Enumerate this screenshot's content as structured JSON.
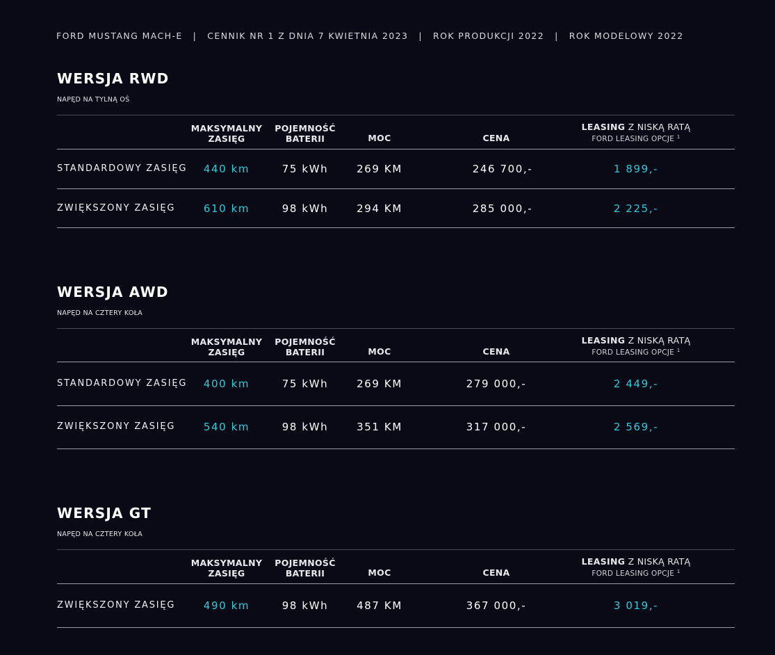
{
  "header": {
    "model": "FORD MUSTANG MACH-E",
    "pricelist": "CENNIK NR 1 Z DNIA 7 KWIETNIA 2023",
    "production_year": "ROK PRODUKCJI 2022",
    "model_year": "ROK MODELOWY 2022",
    "separator": "|"
  },
  "columns": {
    "range_line1": "MAKSYMALNY",
    "range_line2": "ZASIĘG",
    "battery_line1": "POJEMNOŚĆ",
    "battery_line2": "BATERII",
    "power": "MOC",
    "price": "CENA",
    "leasing_bold": "LEASING",
    "leasing_rest": "Z NISKĄ RATĄ",
    "leasing_sub": "FORD LEASING OPCJE",
    "leasing_footnote": "1"
  },
  "colors": {
    "background": "#0a0a17",
    "accent": "#2fcad8",
    "text": "#ffffff"
  },
  "sections": [
    {
      "title": "WERSJA RWD",
      "subtitle": "NAPĘD NA TYLNĄ OŚ",
      "rows": [
        {
          "label": "STANDARDOWY ZASIĘG",
          "range": "440 km",
          "battery": "75 kWh",
          "power": "269 KM",
          "price": "246 700,-",
          "leasing": "1 899,-"
        },
        {
          "label": "ZWIĘKSZONY ZASIĘG",
          "range": "610 km",
          "battery": "98 kWh",
          "power": "294 KM",
          "price": "285 000,-",
          "leasing": "2 225,-"
        }
      ]
    },
    {
      "title": "WERSJA AWD",
      "subtitle": "NAPĘD NA CZTERY KOŁA",
      "rows": [
        {
          "label": "STANDARDOWY ZASIĘG",
          "range": "400 km",
          "battery": "75 kWh",
          "power": "269 KM",
          "price": "279 000,-",
          "leasing": "2 449,-"
        },
        {
          "label": "ZWIĘKSZONY ZASIĘG",
          "range": "540 km",
          "battery": "98 kWh",
          "power": "351 KM",
          "price": "317 000,-",
          "leasing": "2 569,-"
        }
      ]
    },
    {
      "title": "WERSJA GT",
      "subtitle": "NAPĘD NA CZTERY KOŁA",
      "rows": [
        {
          "label": "ZWIĘKSZONY ZASIĘG",
          "range": "490 km",
          "battery": "98 kWh",
          "power": "487 KM",
          "price": "367 000,-",
          "leasing": "3 019,-"
        }
      ]
    }
  ]
}
